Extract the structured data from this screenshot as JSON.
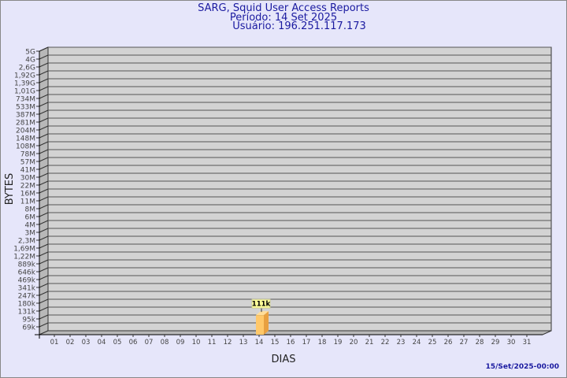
{
  "chart_data": {
    "type": "bar",
    "title": "SARG, Squid User Access Reports",
    "subtitle_period": "Período: 14 Set 2025",
    "subtitle_user": "Usuário: 196.251.117.173",
    "xlabel": "DIAS",
    "ylabel": "BYTES",
    "categories": [
      "01",
      "02",
      "03",
      "04",
      "05",
      "06",
      "07",
      "08",
      "09",
      "10",
      "11",
      "12",
      "13",
      "14",
      "15",
      "16",
      "17",
      "18",
      "19",
      "20",
      "21",
      "22",
      "23",
      "24",
      "25",
      "26",
      "27",
      "28",
      "29",
      "30",
      "31"
    ],
    "y_ticks": [
      "5G",
      "4G",
      "2,6G",
      "1,92G",
      "1,39G",
      "1,01G",
      "734M",
      "533M",
      "387M",
      "281M",
      "204M",
      "148M",
      "108M",
      "78M",
      "57M",
      "41M",
      "30M",
      "22M",
      "16M",
      "11M",
      "8M",
      "6M",
      "4M",
      "3M",
      "2,3M",
      "1,69M",
      "1,22M",
      "889k",
      "646k",
      "469k",
      "341k",
      "247k",
      "180k",
      "131k",
      "95k",
      "69k"
    ],
    "y_scale": "log",
    "grid": true,
    "bars": [
      {
        "category": "14",
        "value": 111000,
        "label": "111k"
      }
    ],
    "colors": {
      "background": "#e6e6fa",
      "plot": "#d3d3d3",
      "bar": "#ffc869",
      "bar_side": "#e8a040",
      "label_bg": "#ffff99",
      "title": "#1a1aa0"
    },
    "footer": "15/Set/2025-00:00"
  }
}
